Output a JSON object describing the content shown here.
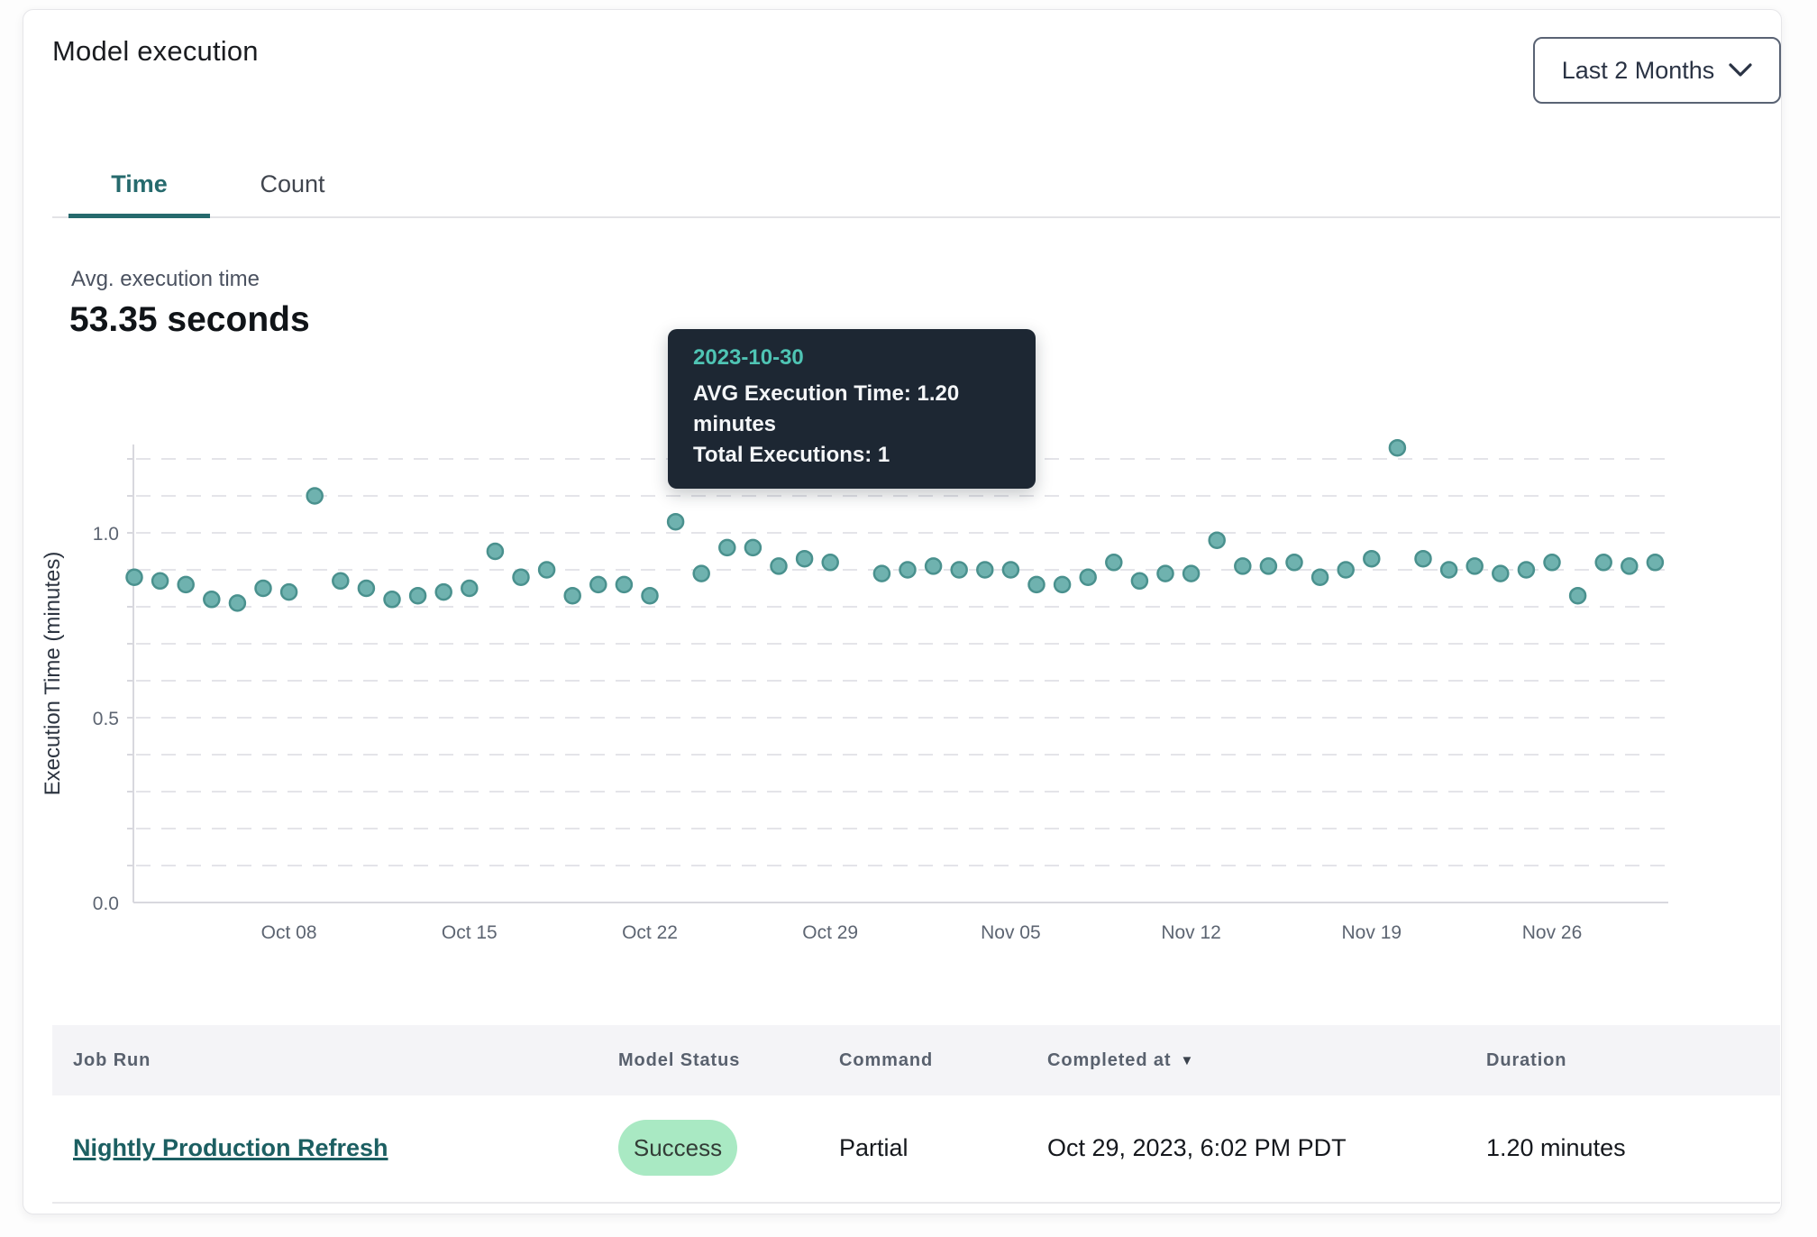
{
  "header": {
    "title": "Model execution",
    "range_selector_label": "Last 2 Months"
  },
  "tabs": {
    "time": "Time",
    "count": "Count",
    "active": "Time"
  },
  "summary": {
    "label": "Avg. execution time",
    "value": "53.35 seconds"
  },
  "tooltip": {
    "date": "2023-10-30",
    "avg_line": "AVG Execution Time: 1.20 minutes",
    "total_line": "Total Executions: 1"
  },
  "chart_data": {
    "type": "scatter",
    "title": "",
    "xlabel": "",
    "ylabel": "Execution Time (minutes)",
    "ylim": [
      0,
      1.25
    ],
    "yticks": [
      "0.0",
      "0.5",
      "1.0"
    ],
    "ytick_values": [
      0,
      0.5,
      1.0
    ],
    "grid": "dashed horizontal lines every 0.1 minutes",
    "legend": "none",
    "xticks": [
      "Oct 08",
      "Oct 15",
      "Oct 22",
      "Oct 29",
      "Nov 05",
      "Nov 12",
      "Nov 19",
      "Nov 26"
    ],
    "xtick_indices": [
      6,
      13,
      20,
      27,
      34,
      41,
      48,
      55
    ],
    "selected_date": "2023-10-30",
    "selected_value": 1.2,
    "dates": [
      "2023-10-02",
      "2023-10-03",
      "2023-10-04",
      "2023-10-05",
      "2023-10-06",
      "2023-10-07",
      "2023-10-08",
      "2023-10-09",
      "2023-10-10",
      "2023-10-11",
      "2023-10-12",
      "2023-10-13",
      "2023-10-14",
      "2023-10-15",
      "2023-10-16",
      "2023-10-17",
      "2023-10-18",
      "2023-10-19",
      "2023-10-20",
      "2023-10-21",
      "2023-10-22",
      "2023-10-23",
      "2023-10-24",
      "2023-10-25",
      "2023-10-26",
      "2023-10-27",
      "2023-10-28",
      "2023-10-29",
      "2023-10-30",
      "2023-10-31",
      "2023-11-01",
      "2023-11-02",
      "2023-11-03",
      "2023-11-04",
      "2023-11-05",
      "2023-11-06",
      "2023-11-07",
      "2023-11-08",
      "2023-11-09",
      "2023-11-10",
      "2023-11-11",
      "2023-11-12",
      "2023-11-13",
      "2023-11-14",
      "2023-11-15",
      "2023-11-16",
      "2023-11-17",
      "2023-11-18",
      "2023-11-19",
      "2023-11-20",
      "2023-11-21",
      "2023-11-22",
      "2023-11-23",
      "2023-11-24",
      "2023-11-25",
      "2023-11-26",
      "2023-11-27",
      "2023-11-28",
      "2023-11-29",
      "2023-11-30"
    ],
    "values": [
      0.88,
      0.87,
      0.86,
      0.82,
      0.81,
      0.85,
      0.84,
      1.1,
      0.87,
      0.85,
      0.82,
      0.83,
      0.84,
      0.85,
      0.95,
      0.88,
      0.9,
      0.83,
      0.86,
      0.86,
      0.83,
      1.03,
      0.89,
      0.96,
      0.96,
      0.91,
      0.93,
      0.92,
      1.2,
      0.89,
      0.9,
      0.91,
      0.9,
      0.9,
      0.9,
      0.86,
      0.86,
      0.88,
      0.92,
      0.87,
      0.89,
      0.89,
      0.98,
      0.91,
      0.91,
      0.92,
      0.88,
      0.9,
      0.93,
      1.23,
      0.93,
      0.9,
      0.91,
      0.89,
      0.9,
      0.92,
      0.83,
      0.92,
      0.91,
      0.92
    ]
  },
  "table": {
    "headers": {
      "job_run": "Job Run",
      "model_status": "Model Status",
      "command": "Command",
      "completed_at": "Completed at",
      "duration": "Duration"
    },
    "sorted_by": "Completed at",
    "rows": [
      {
        "job_run": "Nightly Production Refresh",
        "model_status": "Success",
        "command": "Partial",
        "completed_at": "Oct 29, 2023, 6:02 PM PDT",
        "duration": "1.20 minutes"
      }
    ]
  },
  "colors": {
    "accent_teal": "#266a6d",
    "point_fill": "#6fb2af",
    "point_stroke": "#4a918e",
    "selected_point_fill": "#497f85",
    "selected_point_stroke": "#35666c",
    "tooltip_bg": "#1d2733",
    "tooltip_date": "#4fc4b4",
    "success_badge_bg": "#a9e9c3",
    "grid": "#e4e4e9",
    "axis": "#d8d8de",
    "tick_text": "#5d6572"
  }
}
